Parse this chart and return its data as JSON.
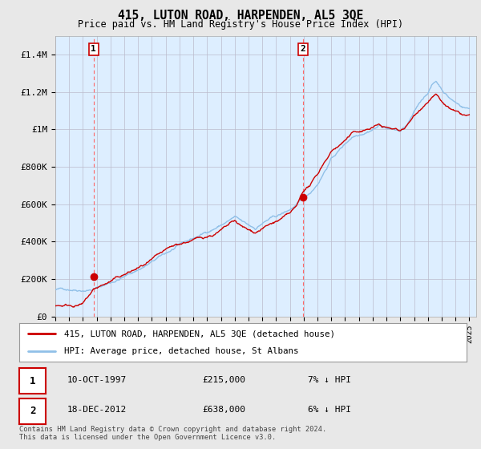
{
  "title": "415, LUTON ROAD, HARPENDEN, AL5 3QE",
  "subtitle": "Price paid vs. HM Land Registry's House Price Index (HPI)",
  "legend_line1": "415, LUTON ROAD, HARPENDEN, AL5 3QE (detached house)",
  "legend_line2": "HPI: Average price, detached house, St Albans",
  "sale1_label": "1",
  "sale1_date": "10-OCT-1997",
  "sale1_price": "£215,000",
  "sale1_hpi": "7% ↓ HPI",
  "sale2_label": "2",
  "sale2_date": "18-DEC-2012",
  "sale2_price": "£638,000",
  "sale2_hpi": "6% ↓ HPI",
  "footnote": "Contains HM Land Registry data © Crown copyright and database right 2024.\nThis data is licensed under the Open Government Licence v3.0.",
  "sale1_year": 1997.78,
  "sale1_value": 215000,
  "sale2_year": 2012.96,
  "sale2_value": 638000,
  "hpi_color": "#90c0e8",
  "price_color": "#cc0000",
  "background_color": "#e8e8e8",
  "plot_bg_color": "#ddeeff",
  "grid_color": "#bbbbcc",
  "vline_color": "#ff6666",
  "ylim": [
    0,
    1500000
  ],
  "xlim_start": 1995,
  "xlim_end": 2025.5
}
